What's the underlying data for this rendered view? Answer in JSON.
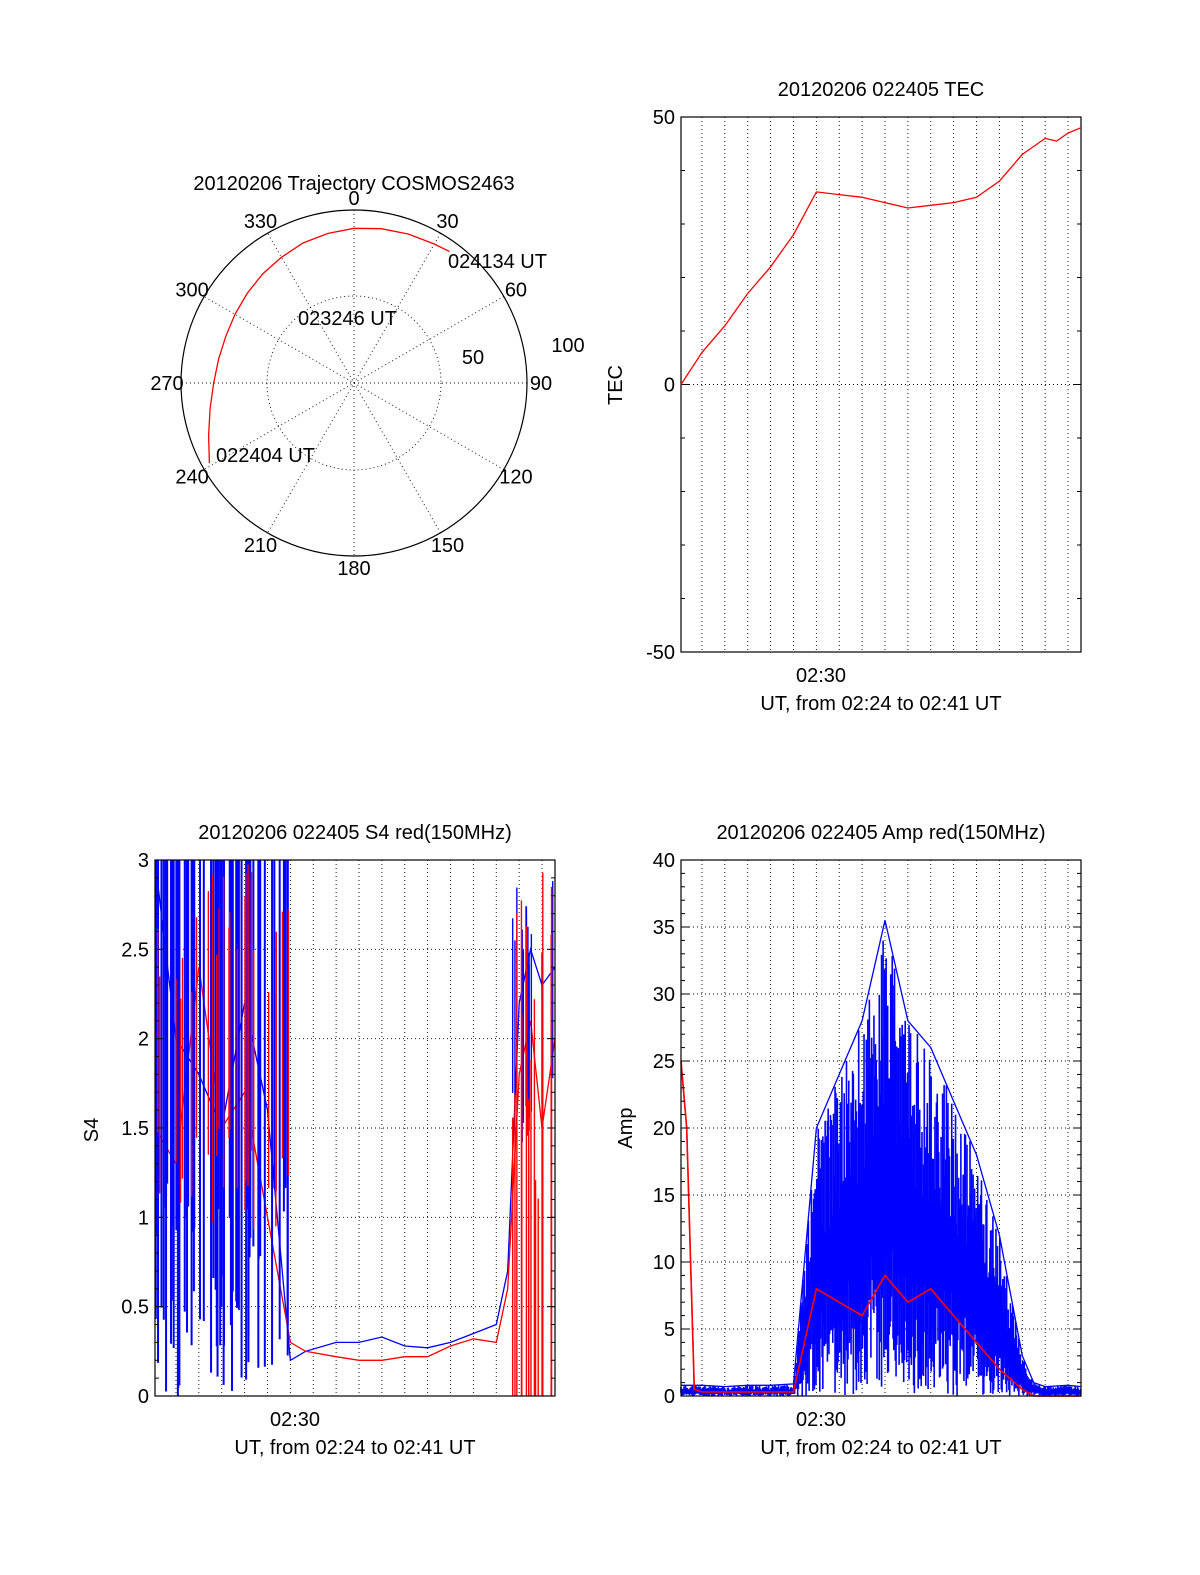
{
  "colors": {
    "red": "#ff0000",
    "blue": "#0000ff",
    "black": "#000000"
  },
  "chart_data": [
    {
      "id": "polar",
      "type": "polar",
      "title": "20120206 Trajectory COSMOS2463",
      "azimuth_labels": [
        "0",
        "30",
        "60",
        "90",
        "120",
        "150",
        "180",
        "210",
        "240",
        "270",
        "300",
        "330"
      ],
      "radial_labels": [
        "50",
        "100"
      ],
      "trajectory": {
        "azimuth_deg": [
          241,
          250,
          260,
          270,
          280,
          290,
          300,
          310,
          320,
          330,
          340,
          350,
          0,
          10,
          20,
          30,
          36
        ],
        "zenith_deg": [
          86,
          80.5,
          76,
          73,
          71.5,
          71,
          71.5,
          72.5,
          74,
          75.5,
          77.5,
          79,
          80.5,
          81.5,
          82.5,
          83.5,
          84.5
        ]
      },
      "annotations": [
        {
          "label": "024134 UT",
          "azimuth_deg": 36,
          "zenith_deg": 84.5
        },
        {
          "label": "023246 UT",
          "azimuth_deg": 308,
          "zenith_deg": 71
        },
        {
          "label": "022404 UT",
          "azimuth_deg": 241,
          "zenith_deg": 86
        }
      ]
    },
    {
      "id": "tec",
      "type": "line",
      "title": "20120206 022405 TEC",
      "ylabel": "TEC",
      "xlabel": "UT, from 02:24 to 02:41 UT",
      "xlim": [
        "02:24:05",
        "02:41:34"
      ],
      "ylim": [
        -50,
        50
      ],
      "yticks": [
        "-50",
        "0",
        "50"
      ],
      "xticks": [
        {
          "time": "02:30:00",
          "label": "02:30"
        }
      ],
      "series": [
        {
          "color": "red",
          "x": [
            "02:24:05",
            "02:25:00",
            "02:26:00",
            "02:27:00",
            "02:28:00",
            "02:29:00",
            "02:30:00",
            "02:31:00",
            "02:32:00",
            "02:33:00",
            "02:34:00",
            "02:35:00",
            "02:36:00",
            "02:37:00",
            "02:38:00",
            "02:39:00",
            "02:40:00",
            "02:40:30",
            "02:41:00",
            "02:41:34"
          ],
          "y": [
            0,
            6,
            11,
            17,
            22,
            28,
            36,
            35.5,
            35,
            34,
            33,
            33.5,
            34,
            35,
            38,
            43,
            46,
            45.5,
            47,
            48
          ]
        }
      ]
    },
    {
      "id": "s4",
      "type": "line",
      "title": "20120206 022405 S4 red(150MHz)",
      "ylabel": "S4",
      "xlabel": "UT, from 02:24 to 02:41 UT",
      "xlim": [
        "02:24:05",
        "02:41:34"
      ],
      "ylim": [
        0,
        3
      ],
      "yticks": [
        "0",
        "0.5",
        "1",
        "1.5",
        "2",
        "2.5",
        "3"
      ],
      "xticks": [
        {
          "time": "02:30:00",
          "label": "02:30"
        }
      ],
      "series": [
        {
          "color": "blue",
          "x": [
            "02:24:05",
            "02:25:00",
            "02:26:00",
            "02:27:00",
            "02:28:00",
            "02:29:00",
            "02:30:00",
            "02:30:40",
            "02:32:00",
            "02:33:00",
            "02:34:00",
            "02:35:00",
            "02:36:00",
            "02:37:00",
            "02:38:00",
            "02:39:00",
            "02:39:30",
            "02:40:00",
            "02:40:30",
            "02:41:00",
            "02:41:34"
          ],
          "y": [
            3,
            2,
            1.8,
            1.5,
            2.2,
            1.6,
            0.2,
            0.25,
            0.3,
            0.3,
            0.33,
            0.28,
            0.27,
            0.3,
            0.35,
            0.4,
            0.7,
            2.2,
            2.5,
            2.3,
            2.4
          ]
        },
        {
          "color": "red",
          "x": [
            "02:24:05",
            "02:25:00",
            "02:26:00",
            "02:27:00",
            "02:28:00",
            "02:29:00",
            "02:30:00",
            "02:30:40",
            "02:32:00",
            "02:33:00",
            "02:34:00",
            "02:35:00",
            "02:36:00",
            "02:37:00",
            "02:38:00",
            "02:39:00",
            "02:39:30",
            "02:40:00",
            "02:40:30",
            "02:41:00",
            "02:41:34"
          ],
          "y": [
            1.5,
            1.3,
            2.4,
            1.5,
            1.7,
            1.0,
            0.3,
            0.25,
            0.22,
            0.2,
            0.2,
            0.22,
            0.22,
            0.28,
            0.32,
            0.3,
            0.6,
            1.8,
            2.1,
            1.5,
            2.0
          ]
        }
      ]
    },
    {
      "id": "amp",
      "type": "line",
      "title": "20120206 022405 Amp red(150MHz)",
      "ylabel": "Amp",
      "xlabel": "UT, from 02:24 to 02:41 UT",
      "xlim": [
        "02:24:05",
        "02:41:34"
      ],
      "ylim": [
        0,
        40
      ],
      "yticks": [
        "0",
        "5",
        "10",
        "15",
        "20",
        "25",
        "30",
        "35",
        "40"
      ],
      "xticks": [
        {
          "time": "02:30:00",
          "label": "02:30"
        }
      ],
      "series": [
        {
          "color": "blue",
          "x": [
            "02:24:05",
            "02:25:00",
            "02:26:00",
            "02:27:00",
            "02:28:00",
            "02:29:00",
            "02:30:00",
            "02:31:00",
            "02:32:00",
            "02:33:00",
            "02:34:00",
            "02:35:00",
            "02:36:00",
            "02:37:00",
            "02:38:00",
            "02:39:00",
            "02:39:30",
            "02:40:00",
            "02:41:00",
            "02:41:34"
          ],
          "y": [
            0.8,
            0.8,
            0.7,
            0.8,
            0.8,
            0.9,
            20,
            24,
            28,
            35.5,
            28,
            26,
            22,
            18,
            12,
            3,
            1,
            0.7,
            0.8,
            0.7
          ]
        },
        {
          "color": "red",
          "x": [
            "02:24:05",
            "02:24:20",
            "02:24:40",
            "02:25:00",
            "02:26:00",
            "02:27:00",
            "02:28:00",
            "02:29:00",
            "02:30:00",
            "02:31:00",
            "02:32:00",
            "02:33:00",
            "02:34:00",
            "02:35:00",
            "02:36:00",
            "02:37:00",
            "02:38:00",
            "02:39:00",
            "02:39:30",
            "02:40:00",
            "02:41:34"
          ],
          "y": [
            25,
            20,
            0.5,
            0.3,
            0.3,
            0.3,
            0.3,
            0.3,
            8,
            7,
            6,
            9,
            7,
            8,
            6,
            4,
            2,
            0.5,
            0,
            0,
            0
          ]
        }
      ]
    }
  ]
}
